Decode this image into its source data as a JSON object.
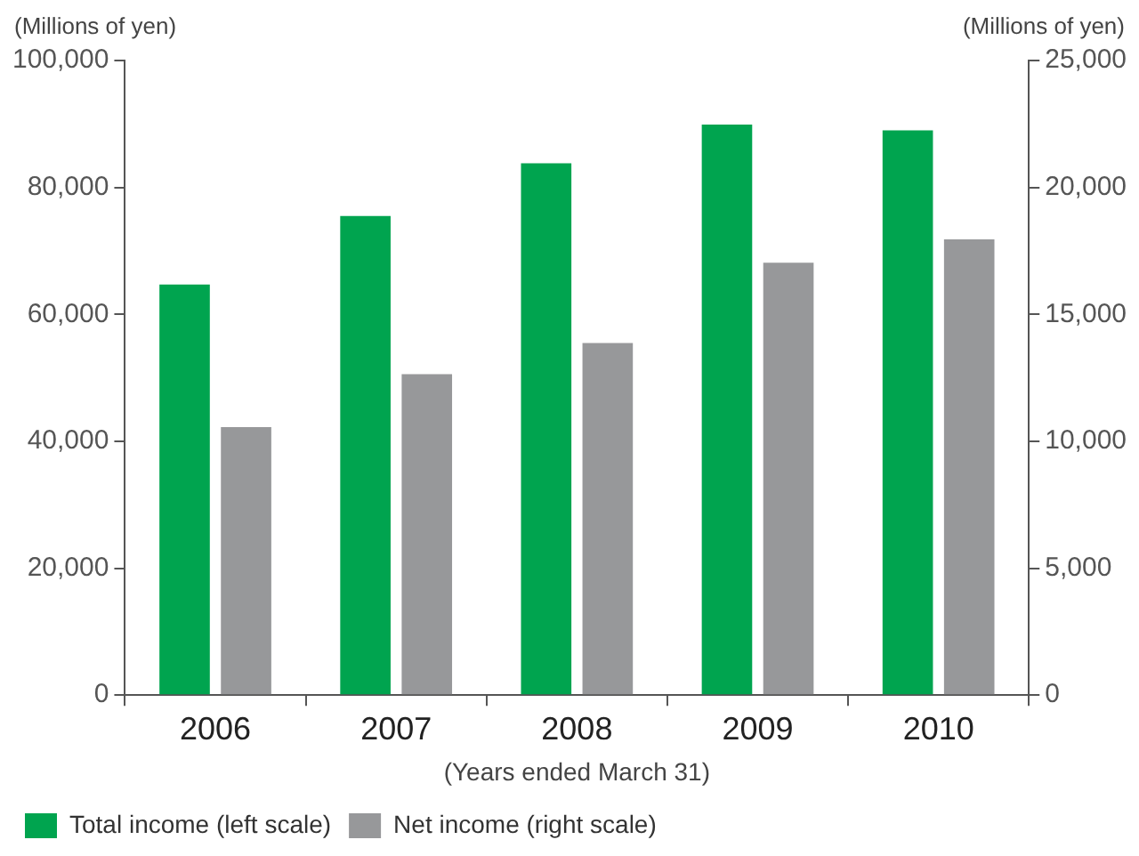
{
  "chart_data": {
    "type": "bar",
    "ylabel": "(Millions of yen)",
    "y2label": "(Millions of yen)",
    "xlabel": "(Years ended March 31)",
    "categories": [
      "2006",
      "2007",
      "2008",
      "2009",
      "2010"
    ],
    "series": [
      {
        "name": "Total income (left scale)",
        "color": "#00a44f",
        "values": [
          64700,
          75500,
          83800,
          89900,
          89000
        ]
      },
      {
        "name": "Net income (right scale)",
        "color": "#97989a",
        "values": [
          10560,
          12640,
          13870,
          17030,
          17950
        ],
        "axis": "y2"
      }
    ],
    "ylim": [
      0,
      100000
    ],
    "yticks": [
      {
        "value": 0,
        "label": "0"
      },
      {
        "value": 20000,
        "label": "20,000"
      },
      {
        "value": 40000,
        "label": "40,000"
      },
      {
        "value": 60000,
        "label": "60,000"
      },
      {
        "value": 80000,
        "label": "80,000"
      },
      {
        "value": 100000,
        "label": "100,000"
      }
    ],
    "y2lim": [
      0,
      25000
    ],
    "y2ticks": [
      {
        "value": 0,
        "label": "0"
      },
      {
        "value": 5000,
        "label": "5,000"
      },
      {
        "value": 10000,
        "label": "10,000"
      },
      {
        "value": 15000,
        "label": "15,000"
      },
      {
        "value": 20000,
        "label": "20,000"
      },
      {
        "value": 25000,
        "label": "25,000"
      }
    ],
    "grid": false,
    "legend": "bottom left"
  }
}
